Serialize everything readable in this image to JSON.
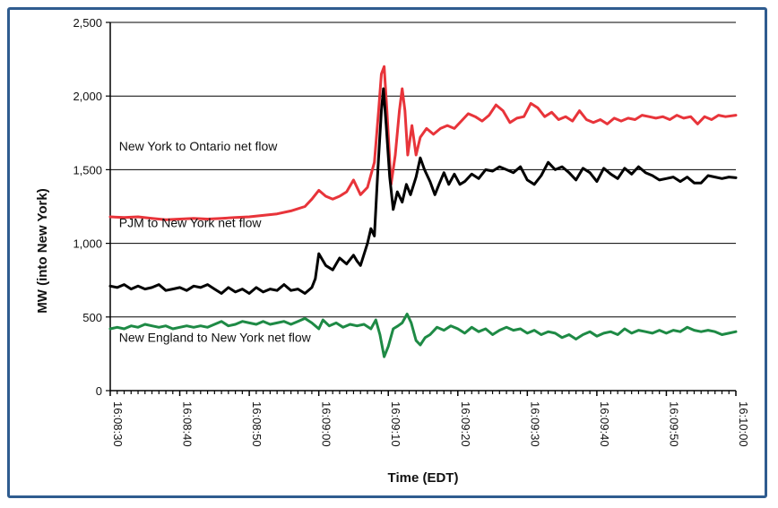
{
  "chart_data": {
    "type": "line",
    "xlabel": "Time (EDT)",
    "ylabel": "MW (into New York)",
    "ylim": [
      0,
      2500
    ],
    "yticks": [
      "0",
      "500",
      "1,000",
      "1,500",
      "2,000",
      "2,500"
    ],
    "xticks": [
      "16:08:30",
      "16:08:40",
      "16:08:50",
      "16:09:00",
      "16:09:10",
      "16:09:20",
      "16:09:30",
      "16:09:40",
      "16:09:50",
      "16:10:00"
    ],
    "xlim_seconds": [
      0,
      90
    ],
    "grid": "horizontal",
    "colors": {
      "ontario": "#e8343a",
      "pjm": "#000000",
      "new_england": "#1e8a45",
      "frame": "#2f5c8f"
    },
    "series": [
      {
        "name": "New York to Ontario net flow",
        "key": "ontario",
        "points": [
          [
            0,
            1180
          ],
          [
            2,
            1175
          ],
          [
            4,
            1180
          ],
          [
            6,
            1170
          ],
          [
            8,
            1160
          ],
          [
            10,
            1165
          ],
          [
            12,
            1170
          ],
          [
            14,
            1165
          ],
          [
            16,
            1170
          ],
          [
            18,
            1175
          ],
          [
            20,
            1180
          ],
          [
            22,
            1190
          ],
          [
            24,
            1200
          ],
          [
            26,
            1220
          ],
          [
            28,
            1250
          ],
          [
            29,
            1300
          ],
          [
            30,
            1360
          ],
          [
            31,
            1320
          ],
          [
            32,
            1300
          ],
          [
            33,
            1320
          ],
          [
            34,
            1350
          ],
          [
            35,
            1430
          ],
          [
            36,
            1330
          ],
          [
            37,
            1380
          ],
          [
            38,
            1550
          ],
          [
            38.6,
            1900
          ],
          [
            39,
            2150
          ],
          [
            39.4,
            2200
          ],
          [
            39.8,
            1900
          ],
          [
            40.4,
            1400
          ],
          [
            41,
            1600
          ],
          [
            41.6,
            1900
          ],
          [
            42,
            2050
          ],
          [
            42.4,
            1900
          ],
          [
            42.8,
            1600
          ],
          [
            43.4,
            1800
          ],
          [
            44,
            1600
          ],
          [
            44.6,
            1720
          ],
          [
            45.5,
            1780
          ],
          [
            46.5,
            1740
          ],
          [
            47.5,
            1780
          ],
          [
            48.5,
            1800
          ],
          [
            49.5,
            1780
          ],
          [
            50.5,
            1830
          ],
          [
            51.5,
            1880
          ],
          [
            52.5,
            1860
          ],
          [
            53.5,
            1830
          ],
          [
            54.5,
            1870
          ],
          [
            55.5,
            1940
          ],
          [
            56.5,
            1900
          ],
          [
            57.5,
            1820
          ],
          [
            58.5,
            1850
          ],
          [
            59.5,
            1860
          ],
          [
            60.5,
            1950
          ],
          [
            61.5,
            1920
          ],
          [
            62.5,
            1860
          ],
          [
            63.5,
            1890
          ],
          [
            64.5,
            1840
          ],
          [
            65.5,
            1860
          ],
          [
            66.5,
            1830
          ],
          [
            67.5,
            1900
          ],
          [
            68.5,
            1840
          ],
          [
            69.5,
            1820
          ],
          [
            70.5,
            1840
          ],
          [
            71.5,
            1810
          ],
          [
            72.5,
            1850
          ],
          [
            73.5,
            1830
          ],
          [
            74.5,
            1850
          ],
          [
            75.5,
            1840
          ],
          [
            76.5,
            1870
          ],
          [
            77.5,
            1860
          ],
          [
            78.5,
            1850
          ],
          [
            79.5,
            1860
          ],
          [
            80.5,
            1840
          ],
          [
            81.5,
            1870
          ],
          [
            82.5,
            1850
          ],
          [
            83.5,
            1860
          ],
          [
            84.5,
            1810
          ],
          [
            85.5,
            1860
          ],
          [
            86.5,
            1840
          ],
          [
            87.5,
            1870
          ],
          [
            88.5,
            1860
          ],
          [
            90,
            1870
          ]
        ]
      },
      {
        "name": "PJM to New York net flow",
        "key": "pjm",
        "points": [
          [
            0,
            710
          ],
          [
            1,
            700
          ],
          [
            2,
            720
          ],
          [
            3,
            690
          ],
          [
            4,
            710
          ],
          [
            5,
            690
          ],
          [
            6,
            700
          ],
          [
            7,
            720
          ],
          [
            8,
            680
          ],
          [
            9,
            690
          ],
          [
            10,
            700
          ],
          [
            11,
            680
          ],
          [
            12,
            710
          ],
          [
            13,
            700
          ],
          [
            14,
            720
          ],
          [
            15,
            690
          ],
          [
            16,
            660
          ],
          [
            17,
            700
          ],
          [
            18,
            670
          ],
          [
            19,
            690
          ],
          [
            20,
            660
          ],
          [
            21,
            700
          ],
          [
            22,
            670
          ],
          [
            23,
            690
          ],
          [
            24,
            680
          ],
          [
            25,
            720
          ],
          [
            26,
            680
          ],
          [
            27,
            690
          ],
          [
            28,
            660
          ],
          [
            29,
            700
          ],
          [
            29.5,
            760
          ],
          [
            30,
            930
          ],
          [
            31,
            850
          ],
          [
            32,
            820
          ],
          [
            33,
            900
          ],
          [
            34,
            860
          ],
          [
            35,
            920
          ],
          [
            35.5,
            880
          ],
          [
            36,
            850
          ],
          [
            37,
            1000
          ],
          [
            37.5,
            1100
          ],
          [
            38,
            1050
          ],
          [
            38.5,
            1500
          ],
          [
            39,
            1900
          ],
          [
            39.3,
            2050
          ],
          [
            39.7,
            1800
          ],
          [
            40.2,
            1450
          ],
          [
            40.7,
            1230
          ],
          [
            41.3,
            1350
          ],
          [
            42,
            1280
          ],
          [
            42.6,
            1400
          ],
          [
            43.2,
            1330
          ],
          [
            44,
            1450
          ],
          [
            44.6,
            1580
          ],
          [
            45.2,
            1500
          ],
          [
            46,
            1420
          ],
          [
            46.7,
            1330
          ],
          [
            47.3,
            1400
          ],
          [
            48,
            1480
          ],
          [
            48.7,
            1400
          ],
          [
            49.5,
            1470
          ],
          [
            50.3,
            1400
          ],
          [
            51,
            1420
          ],
          [
            52,
            1470
          ],
          [
            53,
            1440
          ],
          [
            54,
            1500
          ],
          [
            55,
            1490
          ],
          [
            56,
            1520
          ],
          [
            57,
            1500
          ],
          [
            58,
            1480
          ],
          [
            59,
            1520
          ],
          [
            60,
            1430
          ],
          [
            61,
            1400
          ],
          [
            62,
            1460
          ],
          [
            63,
            1550
          ],
          [
            64,
            1500
          ],
          [
            65,
            1520
          ],
          [
            66,
            1480
          ],
          [
            67,
            1430
          ],
          [
            68,
            1510
          ],
          [
            69,
            1480
          ],
          [
            70,
            1420
          ],
          [
            71,
            1510
          ],
          [
            72,
            1470
          ],
          [
            73,
            1440
          ],
          [
            74,
            1510
          ],
          [
            75,
            1470
          ],
          [
            76,
            1520
          ],
          [
            77,
            1480
          ],
          [
            78,
            1460
          ],
          [
            79,
            1430
          ],
          [
            80,
            1440
          ],
          [
            81,
            1450
          ],
          [
            82,
            1420
          ],
          [
            83,
            1450
          ],
          [
            84,
            1410
          ],
          [
            85,
            1410
          ],
          [
            86,
            1460
          ],
          [
            87,
            1450
          ],
          [
            88,
            1440
          ],
          [
            89,
            1450
          ],
          [
            90,
            1445
          ]
        ]
      },
      {
        "name": "New England to New York net flow",
        "key": "new_england",
        "points": [
          [
            0,
            420
          ],
          [
            1,
            430
          ],
          [
            2,
            420
          ],
          [
            3,
            440
          ],
          [
            4,
            430
          ],
          [
            5,
            450
          ],
          [
            6,
            440
          ],
          [
            7,
            430
          ],
          [
            8,
            440
          ],
          [
            9,
            420
          ],
          [
            10,
            430
          ],
          [
            11,
            440
          ],
          [
            12,
            430
          ],
          [
            13,
            440
          ],
          [
            14,
            430
          ],
          [
            15,
            450
          ],
          [
            16,
            470
          ],
          [
            17,
            440
          ],
          [
            18,
            450
          ],
          [
            19,
            470
          ],
          [
            20,
            460
          ],
          [
            21,
            450
          ],
          [
            22,
            470
          ],
          [
            23,
            450
          ],
          [
            24,
            460
          ],
          [
            25,
            470
          ],
          [
            26,
            450
          ],
          [
            27,
            470
          ],
          [
            28,
            490
          ],
          [
            29,
            460
          ],
          [
            30,
            420
          ],
          [
            30.6,
            480
          ],
          [
            31.5,
            440
          ],
          [
            32.5,
            460
          ],
          [
            33.5,
            430
          ],
          [
            34.5,
            450
          ],
          [
            35.5,
            440
          ],
          [
            36.5,
            450
          ],
          [
            37.5,
            420
          ],
          [
            38.2,
            480
          ],
          [
            38.8,
            380
          ],
          [
            39.4,
            230
          ],
          [
            40,
            300
          ],
          [
            40.7,
            420
          ],
          [
            41.4,
            440
          ],
          [
            42,
            460
          ],
          [
            42.7,
            520
          ],
          [
            43.3,
            460
          ],
          [
            44,
            340
          ],
          [
            44.6,
            310
          ],
          [
            45.3,
            360
          ],
          [
            46,
            380
          ],
          [
            47,
            430
          ],
          [
            48,
            410
          ],
          [
            49,
            440
          ],
          [
            50,
            420
          ],
          [
            51,
            390
          ],
          [
            52,
            430
          ],
          [
            53,
            400
          ],
          [
            54,
            420
          ],
          [
            55,
            380
          ],
          [
            56,
            410
          ],
          [
            57,
            430
          ],
          [
            58,
            410
          ],
          [
            59,
            420
          ],
          [
            60,
            390
          ],
          [
            61,
            410
          ],
          [
            62,
            380
          ],
          [
            63,
            400
          ],
          [
            64,
            390
          ],
          [
            65,
            360
          ],
          [
            66,
            380
          ],
          [
            67,
            350
          ],
          [
            68,
            380
          ],
          [
            69,
            400
          ],
          [
            70,
            370
          ],
          [
            71,
            390
          ],
          [
            72,
            400
          ],
          [
            73,
            380
          ],
          [
            74,
            420
          ],
          [
            75,
            390
          ],
          [
            76,
            410
          ],
          [
            77,
            400
          ],
          [
            78,
            390
          ],
          [
            79,
            410
          ],
          [
            80,
            390
          ],
          [
            81,
            410
          ],
          [
            82,
            400
          ],
          [
            83,
            430
          ],
          [
            84,
            410
          ],
          [
            85,
            400
          ],
          [
            86,
            410
          ],
          [
            87,
            400
          ],
          [
            88,
            380
          ],
          [
            89,
            390
          ],
          [
            90,
            400
          ]
        ]
      }
    ],
    "annotations": [
      {
        "key": "ontario",
        "text": "New York to Ontario net flow",
        "x_sec": 1,
        "y": 1630
      },
      {
        "key": "pjm",
        "text": "PJM to New York net flow",
        "x_sec": 1,
        "y": 1110
      },
      {
        "key": "new_england",
        "text": "New England to New York net flow",
        "x_sec": 1,
        "y": 330
      }
    ]
  }
}
